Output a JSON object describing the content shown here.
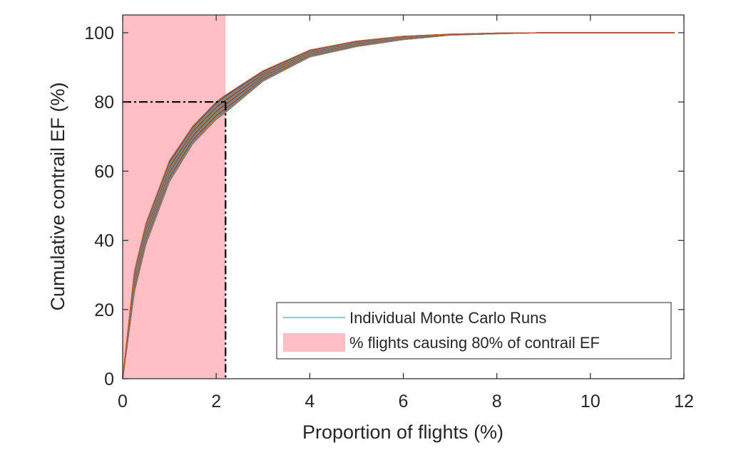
{
  "chart_data": {
    "type": "line",
    "title": "",
    "xlabel": "Proportion of flights (%)",
    "ylabel": "Cumulative contrail EF (%)",
    "xlim": [
      0,
      12
    ],
    "ylim": [
      0,
      100
    ],
    "xticks": [
      "0",
      "2",
      "4",
      "6",
      "8",
      "10",
      "12"
    ],
    "yticks": [
      "0",
      "20",
      "40",
      "60",
      "80",
      "100"
    ],
    "grid": false,
    "legend_position": "bottom-right",
    "legend": [
      {
        "label": "Individual Monte Carlo Runs",
        "kind": "line",
        "color": "#4DBEEE"
      },
      {
        "label": "% flights causing 80% of contrail EF",
        "kind": "patch",
        "color": "#FFBFC4"
      }
    ],
    "shaded_region": {
      "x": [
        0,
        2.2
      ],
      "color": "#FFBFC4"
    },
    "threshold": {
      "x": 2.2,
      "y": 80,
      "style": "dash-dot",
      "color": "#000000"
    },
    "series_colors": [
      "#0072BD",
      "#D95319",
      "#EDB120",
      "#7E2F8E",
      "#77AC30",
      "#4DBEEE",
      "#A2142F"
    ],
    "runs": {
      "count": 30,
      "x_range": [
        0,
        11.8
      ],
      "y_at_2_2_range": [
        77,
        82
      ]
    },
    "envelope": {
      "x": [
        0,
        0.25,
        0.5,
        1,
        1.5,
        2,
        2.2,
        3,
        4,
        5,
        6,
        7,
        8,
        9,
        10,
        11.8
      ],
      "y_low": [
        0,
        25,
        39,
        57,
        68,
        75,
        77,
        86,
        93,
        96,
        98,
        99.3,
        99.7,
        100,
        100,
        100
      ],
      "y_high": [
        0,
        31,
        45,
        63,
        73,
        80,
        82,
        89,
        95,
        97.6,
        99,
        99.6,
        99.9,
        100,
        100,
        100
      ]
    }
  }
}
